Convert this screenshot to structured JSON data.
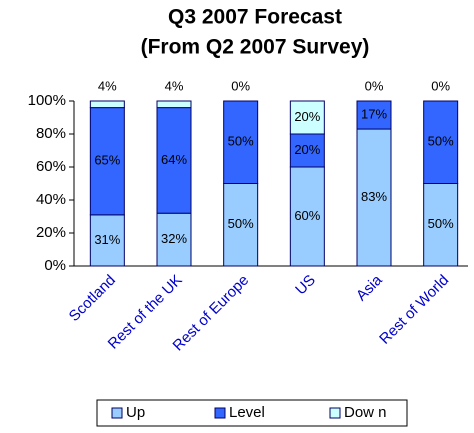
{
  "chart_data": {
    "type": "stacked_bar",
    "title": [
      "Q3 2007 Forecast",
      "(From Q2 2007 Survey)"
    ],
    "categories": [
      "Scotland",
      "Rest of the UK",
      "Rest of Europe",
      "US",
      "Asia",
      "Rest of World"
    ],
    "series": [
      {
        "name": "Up",
        "color": "#99ccff",
        "values": [
          31,
          32,
          50,
          60,
          83,
          50
        ],
        "value_labels": [
          "31%",
          "32%",
          "50%",
          "60%",
          "83%",
          "50%"
        ]
      },
      {
        "name": "Level",
        "color": "#3366ff",
        "values": [
          65,
          64,
          50,
          20,
          17,
          50
        ],
        "value_labels": [
          "65%",
          "64%",
          "50%",
          "20%",
          "17%",
          "50%"
        ]
      },
      {
        "name": "Dow n",
        "color": "#ccffff",
        "values": [
          4,
          4,
          0,
          20,
          0,
          0
        ],
        "value_labels": [
          "4%",
          "4%",
          "0%",
          "20%",
          "0%",
          "0%"
        ]
      }
    ],
    "ylim": [
      0,
      100
    ],
    "yticks": [
      {
        "value": 0,
        "label": "0%"
      },
      {
        "value": 20,
        "label": "20%"
      },
      {
        "value": 40,
        "label": "40%"
      },
      {
        "value": 60,
        "label": "60%"
      },
      {
        "value": 80,
        "label": "80%"
      },
      {
        "value": 100,
        "label": "100%"
      }
    ],
    "legend": "bottom"
  }
}
